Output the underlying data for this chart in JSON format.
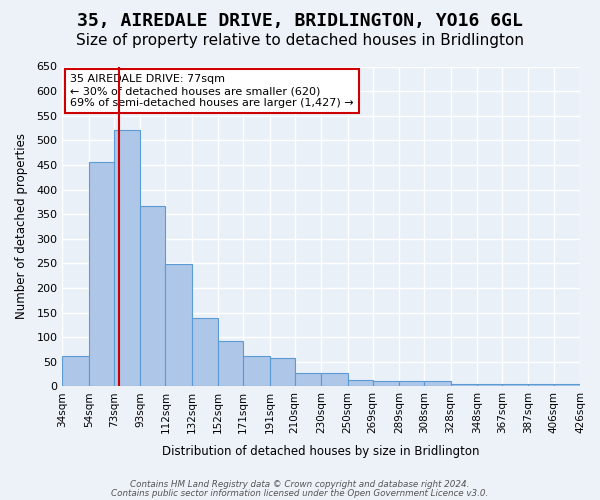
{
  "title": "35, AIREDALE DRIVE, BRIDLINGTON, YO16 6GL",
  "subtitle": "Size of property relative to detached houses in Bridlington",
  "xlabel": "Distribution of detached houses by size in Bridlington",
  "ylabel": "Number of detached properties",
  "bin_labels": [
    "34sqm",
    "54sqm",
    "73sqm",
    "93sqm",
    "112sqm",
    "132sqm",
    "152sqm",
    "171sqm",
    "191sqm",
    "210sqm",
    "230sqm",
    "250sqm",
    "269sqm",
    "289sqm",
    "308sqm",
    "328sqm",
    "348sqm",
    "367sqm",
    "387sqm",
    "406sqm",
    "426sqm"
  ],
  "bin_edges": [
    34,
    54,
    73,
    93,
    112,
    132,
    152,
    171,
    191,
    210,
    230,
    250,
    269,
    289,
    308,
    328,
    348,
    367,
    387,
    406,
    426
  ],
  "bar_heights": [
    62,
    456,
    521,
    367,
    248,
    140,
    93,
    62,
    57,
    28,
    28,
    12,
    10,
    10,
    10,
    5,
    5,
    5,
    5,
    5
  ],
  "bar_color": "#aec6e8",
  "bar_edge_color": "#5b9bd5",
  "vline_x": 77,
  "vline_color": "#cc0000",
  "annotation_text": "35 AIREDALE DRIVE: 77sqm\n← 30% of detached houses are smaller (620)\n69% of semi-detached houses are larger (1,427) →",
  "annotation_box_edge_color": "#cc0000",
  "ylim": [
    0,
    650
  ],
  "yticks": [
    0,
    50,
    100,
    150,
    200,
    250,
    300,
    350,
    400,
    450,
    500,
    550,
    600,
    650
  ],
  "bg_color": "#eaf0f8",
  "grid_color": "#ffffff",
  "footer_line1": "Contains HM Land Registry data © Crown copyright and database right 2024.",
  "footer_line2": "Contains public sector information licensed under the Open Government Licence v3.0.",
  "title_fontsize": 13,
  "subtitle_fontsize": 11
}
